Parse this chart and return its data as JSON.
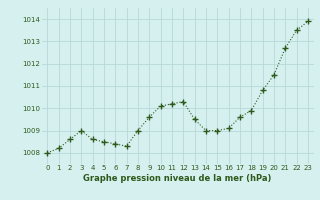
{
  "x": [
    0,
    1,
    2,
    3,
    4,
    5,
    6,
    7,
    8,
    9,
    10,
    11,
    12,
    13,
    14,
    15,
    16,
    17,
    18,
    19,
    20,
    21,
    22,
    23
  ],
  "y": [
    1008.0,
    1008.2,
    1008.6,
    1009.0,
    1008.6,
    1008.5,
    1008.4,
    1008.3,
    1009.0,
    1009.6,
    1010.1,
    1010.2,
    1010.3,
    1009.5,
    1009.0,
    1009.0,
    1009.1,
    1009.6,
    1009.9,
    1010.8,
    1011.5,
    1012.7,
    1013.5,
    1013.9
  ],
  "ylim": [
    1007.5,
    1014.5
  ],
  "yticks": [
    1008,
    1009,
    1010,
    1011,
    1012,
    1013,
    1014
  ],
  "xticks": [
    0,
    1,
    2,
    3,
    4,
    5,
    6,
    7,
    8,
    9,
    10,
    11,
    12,
    13,
    14,
    15,
    16,
    17,
    18,
    19,
    20,
    21,
    22,
    23
  ],
  "xlabel": "Graphe pression niveau de la mer (hPa)",
  "line_color": "#2d5a1b",
  "marker": "+",
  "marker_size": 4,
  "bg_color": "#d6f0f0",
  "grid_color": "#b8d8d8",
  "tick_color": "#2d5a1b",
  "label_color": "#2d5a1b"
}
